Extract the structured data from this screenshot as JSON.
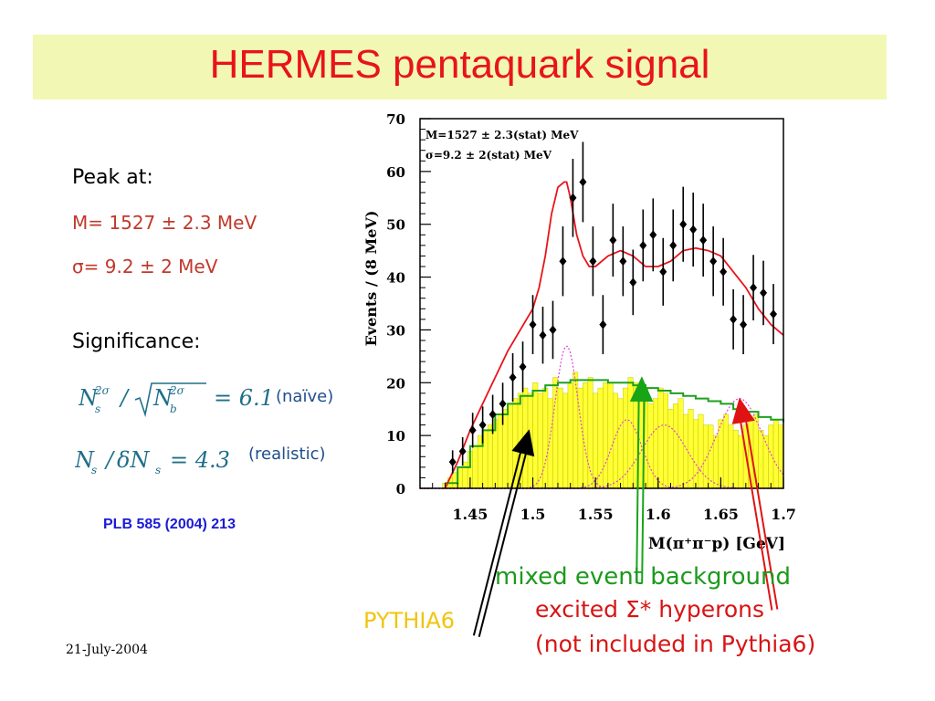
{
  "slide": {
    "title": "HERMES pentaquark signal",
    "peak_label": "Peak at:",
    "mass_line": "M= 1527 ± 2.3 MeV",
    "sigma_line": "σ= 9.2 ± 2 MeV",
    "significance_label": "Significance:",
    "naive_note": "(naïve)",
    "realistic_note": "(realistic)",
    "reference": "PLB 585 (2004) 213",
    "date": "21-July-2004",
    "pythia_label": "PYTHIA6",
    "mixed_label": "mixed event background",
    "excited_label": "excited Σ* hyperons",
    "not_included_label": "(not included in Pythia6)"
  },
  "chart_data": {
    "type": "histogram",
    "xlabel": "M(π⁺π⁻p) [GeV]",
    "ylabel": "Events / (8 MeV)",
    "xlim": [
      1.41,
      1.7
    ],
    "ylim": [
      0,
      70
    ],
    "x_ticks": [
      "1.45",
      "1.5",
      "1.55",
      "1.6",
      "1.65",
      "1.7"
    ],
    "x_tick_values": [
      1.45,
      1.5,
      1.55,
      1.6,
      1.65,
      1.7
    ],
    "y_ticks": [
      "0",
      "10",
      "20",
      "30",
      "40",
      "50",
      "60",
      "70"
    ],
    "y_tick_values": [
      0,
      10,
      20,
      30,
      40,
      50,
      60,
      70
    ],
    "annotation_lines": [
      "M=1527 ± 2.3(stat) MeV",
      "σ=9.2 ± 2(stat) MeV"
    ],
    "data_points": {
      "x": [
        1.436,
        1.444,
        1.452,
        1.46,
        1.468,
        1.476,
        1.484,
        1.492,
        1.5,
        1.508,
        1.516,
        1.524,
        1.532,
        1.54,
        1.548,
        1.556,
        1.564,
        1.572,
        1.58,
        1.588,
        1.596,
        1.604,
        1.612,
        1.62,
        1.628,
        1.636,
        1.644,
        1.652,
        1.66,
        1.668,
        1.676,
        1.684,
        1.692
      ],
      "y": [
        5,
        7,
        11,
        12,
        14,
        16,
        21,
        23,
        31,
        29,
        30,
        43,
        55,
        58,
        43,
        31,
        47,
        43,
        39,
        46,
        48,
        41,
        46,
        50,
        49,
        47,
        43,
        41,
        32,
        31,
        38,
        37,
        33
      ],
      "err": [
        2.2,
        2.7,
        3.3,
        3.5,
        3.7,
        4.0,
        4.6,
        4.8,
        5.6,
        5.4,
        5.5,
        6.6,
        7.4,
        7.6,
        6.6,
        5.6,
        6.9,
        6.6,
        6.2,
        6.8,
        6.9,
        6.4,
        6.8,
        7.1,
        7.0,
        6.9,
        6.6,
        6.4,
        5.7,
        5.6,
        6.2,
        6.1,
        5.7
      ]
    },
    "pythia6_histogram": {
      "edges_start": 1.42,
      "bin_width": 0.004,
      "values": [
        0,
        0,
        1,
        2,
        3,
        4,
        5,
        7,
        8,
        10,
        11,
        12,
        13,
        14,
        15,
        16,
        17,
        18,
        19,
        18,
        20,
        18,
        19,
        17,
        21,
        19,
        18,
        20,
        22,
        19,
        20,
        21,
        18,
        19,
        20,
        20,
        18,
        17,
        19,
        21,
        20,
        18,
        19,
        16,
        17,
        19,
        18,
        15,
        16,
        17,
        14,
        15,
        13,
        14,
        12,
        12,
        10,
        13,
        14,
        12,
        11,
        10,
        12,
        13,
        14,
        11,
        10,
        12,
        13,
        12,
        11,
        10
      ]
    },
    "mixed_event_background": {
      "x": [
        1.43,
        1.44,
        1.45,
        1.46,
        1.47,
        1.48,
        1.49,
        1.5,
        1.51,
        1.52,
        1.53,
        1.54,
        1.55,
        1.56,
        1.57,
        1.58,
        1.59,
        1.6,
        1.61,
        1.62,
        1.63,
        1.64,
        1.65,
        1.66,
        1.67,
        1.68,
        1.69,
        1.7
      ],
      "y": [
        1,
        4,
        8,
        11,
        14,
        16,
        17.5,
        18.5,
        19.5,
        20,
        20.5,
        20.5,
        20.5,
        20,
        20,
        19.5,
        19,
        18.5,
        18,
        17.5,
        17,
        16.5,
        16,
        15,
        14.5,
        13.5,
        13,
        12.5
      ]
    },
    "total_fit": {
      "x": [
        1.43,
        1.44,
        1.45,
        1.46,
        1.47,
        1.48,
        1.49,
        1.5,
        1.505,
        1.51,
        1.515,
        1.52,
        1.525,
        1.527,
        1.53,
        1.535,
        1.54,
        1.545,
        1.55,
        1.56,
        1.57,
        1.58,
        1.59,
        1.6,
        1.61,
        1.62,
        1.63,
        1.64,
        1.65,
        1.66,
        1.67,
        1.68,
        1.69,
        1.7
      ],
      "y": [
        0,
        5,
        11,
        16,
        21,
        26,
        30,
        34,
        38,
        44,
        52,
        57,
        58,
        58,
        55,
        48,
        44,
        42,
        42,
        44,
        45,
        44,
        42,
        42,
        43,
        45,
        45.5,
        45,
        44,
        41,
        38,
        34,
        31,
        29
      ]
    },
    "sigma_star_peaks": [
      {
        "mu": 1.527,
        "sigma": 0.0092,
        "amp": 27
      },
      {
        "mu": 1.575,
        "sigma": 0.012,
        "amp": 13
      },
      {
        "mu": 1.605,
        "sigma": 0.018,
        "amp": 12
      },
      {
        "mu": 1.665,
        "sigma": 0.018,
        "amp": 17
      }
    ],
    "arrows": [
      {
        "label": "PYTHIA6",
        "color": "#000000",
        "from_x": 1.455,
        "from_y": -28,
        "to_x": 1.497,
        "to_y": 11
      },
      {
        "label": "mixed event background",
        "color": "#17a517",
        "from_x": 1.585,
        "from_y": -18,
        "to_x": 1.587,
        "to_y": 21
      },
      {
        "label": "excited Σ* hyperons",
        "color": "#e01313",
        "from_x": 1.693,
        "from_y": -23,
        "to_x": 1.665,
        "to_y": 17
      }
    ],
    "colors": {
      "pythia_fill": "#ffff33",
      "pythia_stroke": "#b8b800",
      "mixed_line": "#1ea01e",
      "fit_line": "#e8141b",
      "sigma_peaks": "#e043e0",
      "points": "#000000"
    }
  }
}
